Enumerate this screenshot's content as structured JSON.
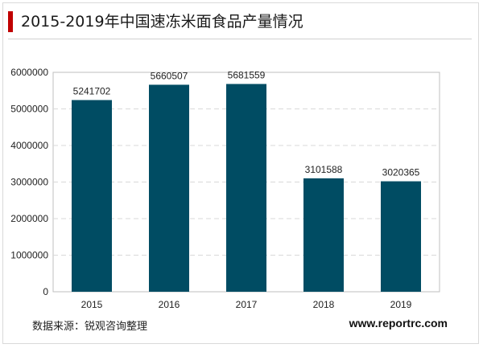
{
  "header": {
    "title": "2015-2019年中国速冻米面食品产量情况"
  },
  "footer": {
    "source": "数据来源：锐观咨询整理",
    "website": "www.reportrc.com"
  },
  "colors": {
    "bar": "#004c63",
    "accent": "#c00000",
    "grid": "#d9d9d9"
  },
  "chart_data": {
    "type": "bar",
    "categories": [
      "2015",
      "2016",
      "2017",
      "2018",
      "2019"
    ],
    "values": [
      5241702,
      5660507,
      5681559,
      3101588,
      3020365
    ],
    "data_labels": [
      "5241702",
      "5660507",
      "5681559",
      "3101588",
      "3020365"
    ],
    "yticks": [
      "0",
      "1000000",
      "2000000",
      "3000000",
      "4000000",
      "5000000",
      "6000000"
    ],
    "ylim": [
      0,
      6000000
    ],
    "grid": true,
    "legend": "none"
  }
}
